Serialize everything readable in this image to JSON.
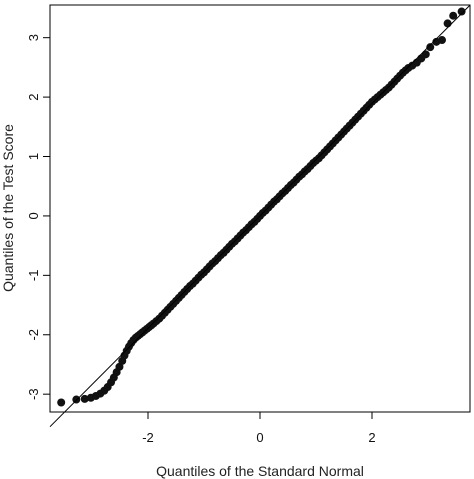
{
  "chart_data": {
    "type": "scatter",
    "title": "",
    "xlabel": "Quantiles of the Standard Normal",
    "ylabel": "Quantiles of the Test Score",
    "xlim": [
      -3.75,
      3.75
    ],
    "ylim": [
      -3.3,
      3.55
    ],
    "xticks": [
      -2,
      0,
      2
    ],
    "yticks": [
      -3,
      -2,
      -1,
      0,
      1,
      2,
      3
    ],
    "xtick_labels": [
      "-2",
      "0",
      "2"
    ],
    "ytick_labels": [
      "-3",
      "-2",
      "-1",
      "0",
      "1",
      "2",
      "3"
    ],
    "grid": false,
    "reference_line": {
      "intercept": 0,
      "slope": 0.946
    },
    "points": [
      [
        -3.55,
        -3.14
      ],
      [
        -3.28,
        -3.09
      ],
      [
        -3.13,
        -3.08
      ],
      [
        -3.02,
        -3.06
      ],
      [
        -2.93,
        -3.03
      ],
      [
        -2.85,
        -2.99
      ],
      [
        -2.78,
        -2.94
      ],
      [
        -2.72,
        -2.88
      ],
      [
        -2.66,
        -2.8
      ],
      [
        -2.61,
        -2.72
      ],
      [
        -2.56,
        -2.63
      ],
      [
        -2.51,
        -2.54
      ],
      [
        -2.46,
        -2.44
      ],
      [
        -2.42,
        -2.35
      ],
      [
        -2.38,
        -2.27
      ],
      [
        -2.34,
        -2.2
      ],
      [
        -2.3,
        -2.14
      ],
      [
        -2.26,
        -2.09
      ],
      [
        -2.22,
        -2.05
      ],
      [
        -2.18,
        -2.02
      ],
      [
        -2.14,
        -1.99
      ],
      [
        -2.1,
        -1.96
      ],
      [
        -2.06,
        -1.93
      ],
      [
        -2.02,
        -1.9
      ],
      [
        -1.98,
        -1.87
      ],
      [
        -1.94,
        -1.84
      ],
      [
        -1.9,
        -1.81
      ],
      [
        -1.85,
        -1.77
      ],
      [
        -1.8,
        -1.73
      ],
      [
        -1.75,
        -1.68
      ],
      [
        -1.7,
        -1.63
      ],
      [
        -1.65,
        -1.58
      ],
      [
        -1.6,
        -1.53
      ],
      [
        -1.55,
        -1.48
      ],
      [
        -1.5,
        -1.43
      ],
      [
        -1.45,
        -1.38
      ],
      [
        -1.4,
        -1.33
      ],
      [
        -1.35,
        -1.28
      ],
      [
        -1.3,
        -1.23
      ],
      [
        -1.25,
        -1.18
      ],
      [
        -1.2,
        -1.14
      ],
      [
        -1.15,
        -1.09
      ],
      [
        -1.1,
        -1.04
      ],
      [
        -1.05,
        -0.99
      ],
      [
        -1.0,
        -0.95
      ],
      [
        -0.95,
        -0.9
      ],
      [
        -0.9,
        -0.85
      ],
      [
        -0.85,
        -0.8
      ],
      [
        -0.8,
        -0.76
      ],
      [
        -0.75,
        -0.71
      ],
      [
        -0.7,
        -0.66
      ],
      [
        -0.65,
        -0.62
      ],
      [
        -0.6,
        -0.57
      ],
      [
        -0.55,
        -0.52
      ],
      [
        -0.5,
        -0.47
      ],
      [
        -0.45,
        -0.43
      ],
      [
        -0.4,
        -0.38
      ],
      [
        -0.35,
        -0.33
      ],
      [
        -0.3,
        -0.28
      ],
      [
        -0.25,
        -0.24
      ],
      [
        -0.2,
        -0.19
      ],
      [
        -0.15,
        -0.14
      ],
      [
        -0.1,
        -0.1
      ],
      [
        -0.05,
        -0.05
      ],
      [
        0.0,
        0.0
      ],
      [
        0.05,
        0.05
      ],
      [
        0.1,
        0.09
      ],
      [
        0.15,
        0.14
      ],
      [
        0.2,
        0.19
      ],
      [
        0.25,
        0.24
      ],
      [
        0.3,
        0.28
      ],
      [
        0.35,
        0.33
      ],
      [
        0.4,
        0.38
      ],
      [
        0.45,
        0.42
      ],
      [
        0.5,
        0.47
      ],
      [
        0.55,
        0.52
      ],
      [
        0.6,
        0.56
      ],
      [
        0.65,
        0.61
      ],
      [
        0.7,
        0.66
      ],
      [
        0.75,
        0.7
      ],
      [
        0.8,
        0.75
      ],
      [
        0.85,
        0.79
      ],
      [
        0.9,
        0.84
      ],
      [
        0.95,
        0.89
      ],
      [
        1.0,
        0.93
      ],
      [
        1.05,
        0.97
      ],
      [
        1.1,
        1.02
      ],
      [
        1.15,
        1.07
      ],
      [
        1.2,
        1.12
      ],
      [
        1.25,
        1.17
      ],
      [
        1.3,
        1.22
      ],
      [
        1.35,
        1.27
      ],
      [
        1.4,
        1.32
      ],
      [
        1.45,
        1.37
      ],
      [
        1.5,
        1.42
      ],
      [
        1.55,
        1.47
      ],
      [
        1.6,
        1.52
      ],
      [
        1.65,
        1.57
      ],
      [
        1.7,
        1.62
      ],
      [
        1.75,
        1.67
      ],
      [
        1.8,
        1.72
      ],
      [
        1.85,
        1.77
      ],
      [
        1.9,
        1.82
      ],
      [
        1.95,
        1.87
      ],
      [
        2.0,
        1.92
      ],
      [
        2.05,
        1.96
      ],
      [
        2.1,
        2.0
      ],
      [
        2.15,
        2.04
      ],
      [
        2.2,
        2.08
      ],
      [
        2.25,
        2.12
      ],
      [
        2.3,
        2.16
      ],
      [
        2.35,
        2.21
      ],
      [
        2.4,
        2.26
      ],
      [
        2.45,
        2.31
      ],
      [
        2.5,
        2.36
      ],
      [
        2.55,
        2.41
      ],
      [
        2.6,
        2.45
      ],
      [
        2.65,
        2.49
      ],
      [
        2.72,
        2.53
      ],
      [
        2.8,
        2.58
      ],
      [
        2.88,
        2.65
      ],
      [
        2.96,
        2.72
      ],
      [
        3.04,
        2.84
      ],
      [
        3.15,
        2.93
      ],
      [
        3.25,
        2.96
      ],
      [
        3.35,
        3.24
      ],
      [
        3.45,
        3.37
      ],
      [
        3.6,
        3.44
      ]
    ]
  }
}
